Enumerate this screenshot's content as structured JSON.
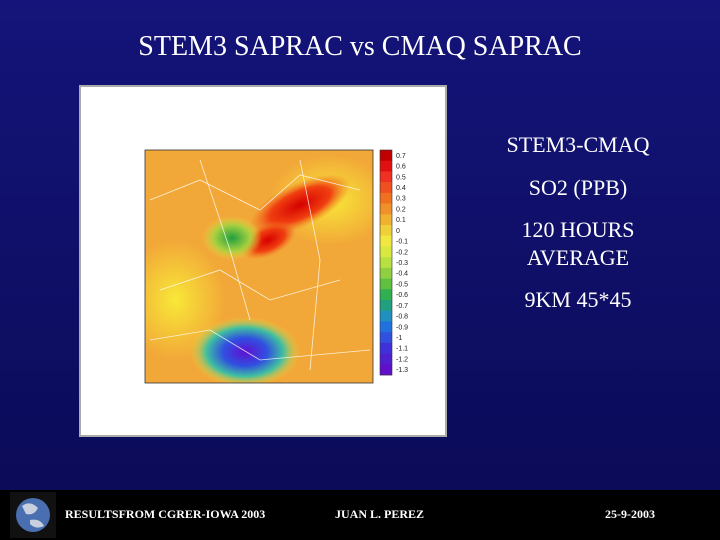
{
  "slide": {
    "title": "STEM3 SAPRAC vs CMAQ SAPRAC",
    "notes": [
      "STEM3-CMAQ",
      "SO2 (PPB)",
      "120 HOURS",
      "AVERAGE",
      "9KM 45*45"
    ],
    "figure": {
      "colorbar_labels": [
        "0.7",
        "0.6",
        "0.5",
        "0.4",
        "0.3",
        "0.2",
        "0.1",
        "0",
        "-0.1",
        "-0.2",
        "-0.3",
        "-0.4",
        "-0.5",
        "-0.6",
        "-0.7",
        "-0.8",
        "-0.9",
        "-1",
        "-1.1",
        "-1.2",
        "-1.3"
      ]
    },
    "footer": {
      "left": "RESULTSFROM CGRER-IOWA 2003",
      "center": "JUAN L. PEREZ",
      "right": "25-9-2003"
    }
  }
}
